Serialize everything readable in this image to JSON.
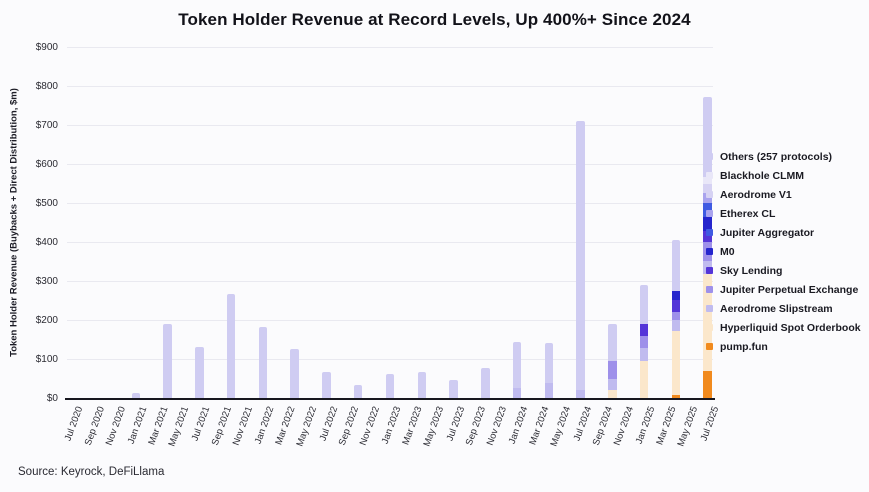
{
  "chart_data": {
    "type": "bar",
    "stacked": true,
    "title": "Token Holder Revenue at Record Levels, Up 400%+ Since 2024",
    "ylabel": "Token Holder Revenue (Buybacks + Direct Distribution, $m)",
    "unit": "$m",
    "ylim": [
      0,
      900
    ],
    "grid": true,
    "legend_position": "right",
    "y_ticks": [
      "$0",
      "$100",
      "$200",
      "$300",
      "$400",
      "$500",
      "$600",
      "$700",
      "$800",
      "$900"
    ],
    "x_tick_step": 2,
    "months": [
      "Jul 2020",
      "Aug 2020",
      "Sep 2020",
      "Oct 2020",
      "Nov 2020",
      "Dec 2020",
      "Jan 2021",
      "Feb 2021",
      "Mar 2021",
      "Apr 2021",
      "May 2021",
      "Jun 2021",
      "Jul 2021",
      "Aug 2021",
      "Sep 2021",
      "Oct 2021",
      "Nov 2021",
      "Dec 2021",
      "Jan 2022",
      "Feb 2022",
      "Mar 2022",
      "Apr 2022",
      "May 2022",
      "Jun 2022",
      "Jul 2022",
      "Aug 2022",
      "Sep 2022",
      "Oct 2022",
      "Nov 2022",
      "Dec 2022",
      "Jan 2023",
      "Feb 2023",
      "Mar 2023",
      "Apr 2023",
      "May 2023",
      "Jun 2023",
      "Jul 2023",
      "Aug 2023",
      "Sep 2023",
      "Oct 2023",
      "Nov 2023",
      "Dec 2023",
      "Jan 2024",
      "Feb 2024",
      "Mar 2024",
      "Apr 2024",
      "May 2024",
      "Jun 2024",
      "Jul 2024",
      "Aug 2024",
      "Sep 2024",
      "Oct 2024",
      "Nov 2024",
      "Dec 2024",
      "Jan 2025",
      "Feb 2025",
      "Mar 2025",
      "Apr 2025",
      "May 2025",
      "Jun 2025",
      "Jul 2025"
    ],
    "legend": [
      {
        "key": "others",
        "label": "Others (257 protocols)",
        "color": "#cfccf2"
      },
      {
        "key": "blackhole_clmm",
        "label": "Blackhole CLMM",
        "color": "#e9e7f8"
      },
      {
        "key": "aerodrome_v1",
        "label": "Aerodrome V1",
        "color": "#d6d2f3"
      },
      {
        "key": "etherex_cl",
        "label": "Etherex CL",
        "color": "#a9a3ee"
      },
      {
        "key": "jupiter_aggregator",
        "label": "Jupiter Aggregator",
        "color": "#3f5ae2"
      },
      {
        "key": "m0",
        "label": "M0",
        "color": "#2525cd"
      },
      {
        "key": "sky_lending",
        "label": "Sky Lending",
        "color": "#5435d8"
      },
      {
        "key": "jupiter_perpetual_exchange",
        "label": "Jupiter Perpetual Exchange",
        "color": "#9e90ea"
      },
      {
        "key": "aerodrome_slipstream",
        "label": "Aerodrome Slipstream",
        "color": "#c0bbef"
      },
      {
        "key": "hyperliquid_spot_orderbook",
        "label": "Hyperliquid Spot Orderbook",
        "color": "#fbe7cb"
      },
      {
        "key": "pump_fun",
        "label": "pump.fun",
        "color": "#f18a1d"
      }
    ],
    "bars": {
      "Jan 2021": {
        "others": 13
      },
      "Apr 2021": {
        "others": 190
      },
      "Jul 2021": {
        "others": 130
      },
      "Oct 2021": {
        "others": 267
      },
      "Jan 2022": {
        "others": 181
      },
      "Apr 2022": {
        "others": 125
      },
      "Jul 2022": {
        "others": 67
      },
      "Oct 2022": {
        "others": 34
      },
      "Jan 2023": {
        "others": 62
      },
      "Apr 2023": {
        "others": 67
      },
      "Jul 2023": {
        "others": 47
      },
      "Oct 2023": {
        "others": 78
      },
      "Jan 2024": {
        "aerodrome_slipstream": 26,
        "others": 117
      },
      "Apr 2024": {
        "aerodrome_slipstream": 39,
        "others": 101
      },
      "Jul 2024": {
        "aerodrome_slipstream": 20,
        "others": 690
      },
      "Oct 2024": {
        "hyperliquid_spot_orderbook": 20,
        "aerodrome_slipstream": 30,
        "jupiter_perpetual_exchange": 45,
        "others": 95
      },
      "Jan 2025": {
        "hyperliquid_spot_orderbook": 95,
        "aerodrome_slipstream": 34,
        "jupiter_perpetual_exchange": 30,
        "sky_lending": 30,
        "others": 100
      },
      "Apr 2025": {
        "pump_fun": 8,
        "hyperliquid_spot_orderbook": 165,
        "aerodrome_slipstream": 26,
        "jupiter_perpetual_exchange": 22,
        "sky_lending": 30,
        "m0": 24,
        "others": 131
      },
      "Jul 2025": {
        "pump_fun": 68,
        "hyperliquid_spot_orderbook": 249,
        "aerodrome_slipstream": 34,
        "jupiter_perpetual_exchange": 49,
        "sky_lending": 29,
        "m0": 35,
        "jupiter_aggregator": 37,
        "etherex_cl": 26,
        "aerodrome_v1": 21,
        "blackhole_clmm": 18,
        "others": 207
      }
    }
  },
  "source_note": "Source: Keyrock, DeFiLlama",
  "colors": {
    "background": "#fbfbfd",
    "grid": "#e9e9f0",
    "axis_line": "#17171f",
    "title_text": "#121219",
    "tick_text": "#2b2b33"
  }
}
